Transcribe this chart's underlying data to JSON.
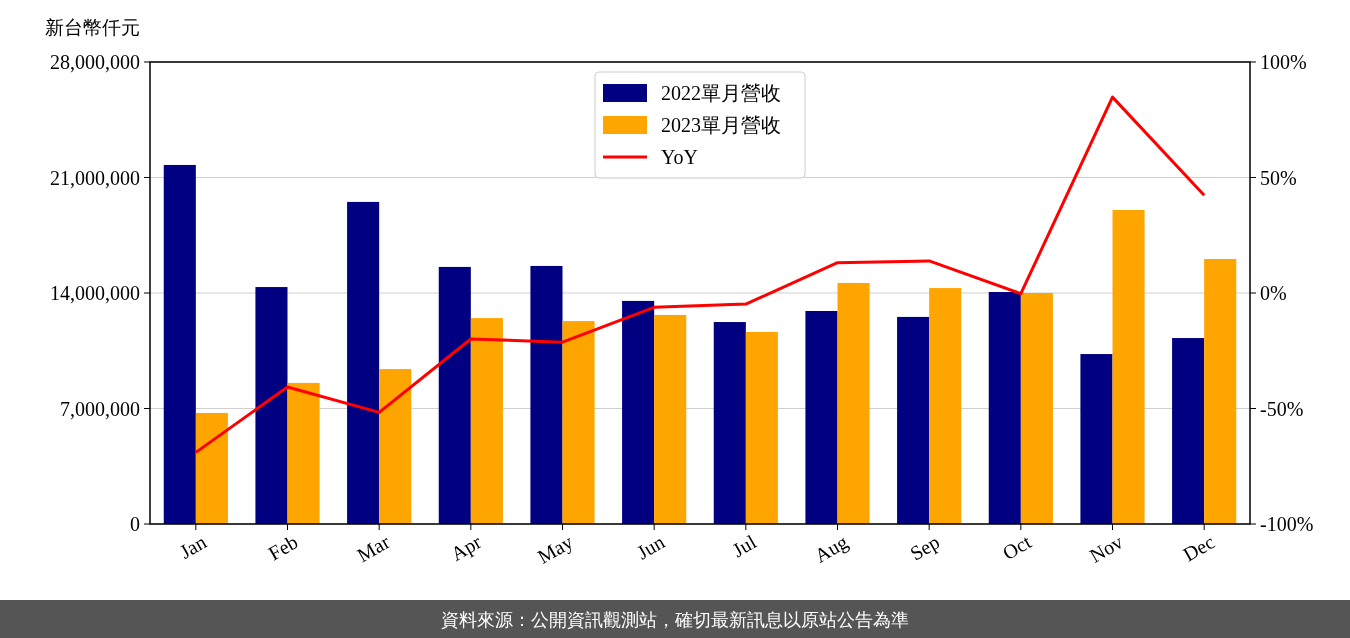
{
  "chart_data": {
    "type": "bar",
    "ylabel": "新台幣仟元",
    "categories": [
      "Jan",
      "Feb",
      "Mar",
      "Apr",
      "May",
      "Jun",
      "Jul",
      "Aug",
      "Sep",
      "Oct",
      "Nov",
      "Dec"
    ],
    "series": [
      {
        "name": "2022單月營收",
        "color": "#000080",
        "values": [
          21760000,
          14360000,
          19520000,
          15580000,
          15640000,
          13520000,
          12240000,
          12910000,
          12550000,
          14060000,
          10300000,
          11270000
        ]
      },
      {
        "name": "2023單月營收",
        "color": "#ffa500",
        "values": [
          6730000,
          8550000,
          9390000,
          12480000,
          12300000,
          12670000,
          11640000,
          14610000,
          14300000,
          14000000,
          19030000,
          16060000
        ]
      },
      {
        "name": "YoY",
        "type": "line",
        "axis": "y2",
        "color": "#ff0000",
        "values": [
          -69,
          -40.7,
          -51.7,
          -19.9,
          -21.3,
          -6.2,
          -4.8,
          13.1,
          13.9,
          -0.3,
          84.8,
          42.3
        ]
      }
    ],
    "ylim": [
      0,
      28000000
    ],
    "yticks": [
      0,
      {
        "value": 7000000,
        "label": "7,000,000"
      },
      {
        "value": 14000000,
        "label": "14,000,000"
      },
      {
        "value": 21000000,
        "label": "21,000,000"
      },
      {
        "value": 28000000,
        "label": "28,000,000"
      }
    ],
    "y2lim": [
      -100,
      100
    ],
    "y2ticks": [
      {
        "value": -100,
        "label": "-100%"
      },
      {
        "value": -50,
        "label": "-50%"
      },
      {
        "value": 0,
        "label": "0%"
      },
      {
        "value": 50,
        "label": "50%"
      },
      {
        "value": 100,
        "label": "100%"
      }
    ],
    "grid": "y",
    "legend": "top",
    "annotations": [
      "資料來源：公開資訊觀測站，確切最新訊息以原站公告為準"
    ]
  }
}
